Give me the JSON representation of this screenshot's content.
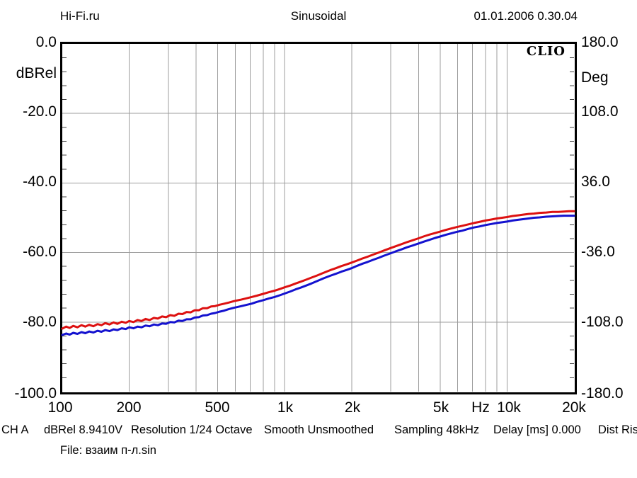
{
  "header": {
    "left": "Hi-Fi.ru",
    "center": "Sinusoidal",
    "right": "01.01.2006 0.30.04"
  },
  "branding": "CLIO",
  "axes": {
    "left": {
      "unit": "dBRel",
      "ticks": [
        "0.0",
        "-20.0",
        "-40.0",
        "-60.0",
        "-80.0",
        "-100.0"
      ]
    },
    "right": {
      "unit": "Deg",
      "ticks": [
        "180.0",
        "108.0",
        "36.0",
        "-36.0",
        "-108.0",
        "-180.0"
      ]
    },
    "bottom": {
      "unit": "Hz",
      "ticks": [
        "100",
        "200",
        "500",
        "1k",
        "2k",
        "5k",
        "10k",
        "20k"
      ]
    }
  },
  "status_bar": {
    "segments": [
      "CH A",
      "dBRel 8.9410V",
      "Resolution 1/24 Octave",
      "Smooth Unsmoothed",
      "Sampling 48kHz",
      "Delay [ms] 0.000",
      "Dist Ris"
    ]
  },
  "file_line": "File: взаим п-л.sin",
  "chart_data": {
    "type": "line",
    "title": "Sinusoidal",
    "x_axis": {
      "scale": "log",
      "label": "Hz",
      "range": [
        100,
        20000
      ],
      "tick_values": [
        100,
        200,
        500,
        1000,
        2000,
        5000,
        10000,
        20000
      ]
    },
    "y_axis_left": {
      "label": "dBRel",
      "range": [
        -100,
        0
      ],
      "major_step": 20,
      "minor_tick_step": 4
    },
    "y_axis_right": {
      "label": "Deg",
      "range": [
        -180,
        180
      ],
      "major_step": 72
    },
    "grid": {
      "freq_lines": [
        200,
        300,
        400,
        500,
        600,
        700,
        800,
        900,
        1000,
        2000,
        3000,
        4000,
        5000,
        6000,
        7000,
        8000,
        9000,
        10000
      ],
      "db_lines": [
        -20,
        -40,
        -60,
        -80
      ],
      "color": "#9c9c9c"
    },
    "legend": "none",
    "series": [
      {
        "name": "blue-curve",
        "color": "#1412cf",
        "points": [
          [
            100,
            -83.7
          ],
          [
            104,
            -83.3
          ],
          [
            108,
            -83.6
          ],
          [
            112,
            -83.1
          ],
          [
            117,
            -83.4
          ],
          [
            122,
            -82.9
          ],
          [
            127,
            -83.2
          ],
          [
            132,
            -82.7
          ],
          [
            138,
            -83.0
          ],
          [
            144,
            -82.5
          ],
          [
            150,
            -82.8
          ],
          [
            156,
            -82.3
          ],
          [
            163,
            -82.6
          ],
          [
            170,
            -82.1
          ],
          [
            177,
            -82.3
          ],
          [
            185,
            -81.8
          ],
          [
            193,
            -82.0
          ],
          [
            200,
            -81.5
          ],
          [
            209,
            -81.8
          ],
          [
            218,
            -81.3
          ],
          [
            227,
            -81.5
          ],
          [
            237,
            -81.0
          ],
          [
            247,
            -81.2
          ],
          [
            258,
            -80.7
          ],
          [
            269,
            -80.9
          ],
          [
            281,
            -80.4
          ],
          [
            293,
            -80.5
          ],
          [
            306,
            -80.0
          ],
          [
            319,
            -80.1
          ],
          [
            333,
            -79.6
          ],
          [
            347,
            -79.7
          ],
          [
            362,
            -79.2
          ],
          [
            378,
            -79.2
          ],
          [
            394,
            -78.7
          ],
          [
            411,
            -78.6
          ],
          [
            429,
            -78.1
          ],
          [
            448,
            -78.0
          ],
          [
            467,
            -77.6
          ],
          [
            487,
            -77.4
          ],
          [
            510,
            -77.0
          ],
          [
            535,
            -76.7
          ],
          [
            560,
            -76.3
          ],
          [
            590,
            -75.9
          ],
          [
            630,
            -75.5
          ],
          [
            670,
            -75.1
          ],
          [
            710,
            -74.7
          ],
          [
            750,
            -74.2
          ],
          [
            800,
            -73.7
          ],
          [
            850,
            -73.2
          ],
          [
            900,
            -72.8
          ],
          [
            950,
            -72.3
          ],
          [
            1000,
            -71.8
          ],
          [
            1060,
            -71.2
          ],
          [
            1120,
            -70.6
          ],
          [
            1180,
            -70.1
          ],
          [
            1250,
            -69.5
          ],
          [
            1320,
            -68.9
          ],
          [
            1400,
            -68.2
          ],
          [
            1500,
            -67.4
          ],
          [
            1600,
            -66.7
          ],
          [
            1700,
            -66.1
          ],
          [
            1800,
            -65.5
          ],
          [
            1900,
            -65.0
          ],
          [
            2000,
            -64.5
          ],
          [
            2120,
            -63.8
          ],
          [
            2240,
            -63.2
          ],
          [
            2360,
            -62.7
          ],
          [
            2500,
            -62.1
          ],
          [
            2650,
            -61.5
          ],
          [
            2800,
            -60.9
          ],
          [
            3000,
            -60.2
          ],
          [
            3150,
            -59.7
          ],
          [
            3350,
            -59.1
          ],
          [
            3550,
            -58.5
          ],
          [
            3750,
            -58.0
          ],
          [
            4000,
            -57.4
          ],
          [
            4250,
            -56.8
          ],
          [
            4500,
            -56.3
          ],
          [
            4750,
            -55.8
          ],
          [
            5000,
            -55.4
          ],
          [
            5300,
            -54.9
          ],
          [
            5600,
            -54.5
          ],
          [
            6000,
            -54.0
          ],
          [
            6300,
            -53.7
          ],
          [
            6700,
            -53.2
          ],
          [
            7100,
            -52.8
          ],
          [
            7500,
            -52.5
          ],
          [
            8000,
            -52.1
          ],
          [
            8500,
            -51.8
          ],
          [
            9000,
            -51.5
          ],
          [
            9500,
            -51.3
          ],
          [
            10000,
            -51.1
          ],
          [
            10600,
            -50.8
          ],
          [
            11200,
            -50.6
          ],
          [
            11800,
            -50.4
          ],
          [
            12500,
            -50.2
          ],
          [
            13200,
            -50.0
          ],
          [
            14000,
            -49.9
          ],
          [
            15000,
            -49.7
          ],
          [
            16000,
            -49.6
          ],
          [
            17000,
            -49.5
          ],
          [
            18000,
            -49.4
          ],
          [
            19000,
            -49.4
          ],
          [
            20000,
            -49.4
          ]
        ]
      },
      {
        "name": "red-curve",
        "color": "#dd1111",
        "points": [
          [
            100,
            -81.9
          ],
          [
            104,
            -81.3
          ],
          [
            108,
            -81.7
          ],
          [
            112,
            -81.1
          ],
          [
            117,
            -81.5
          ],
          [
            122,
            -80.9
          ],
          [
            127,
            -81.3
          ],
          [
            132,
            -80.8
          ],
          [
            138,
            -81.2
          ],
          [
            144,
            -80.6
          ],
          [
            150,
            -80.9
          ],
          [
            156,
            -80.3
          ],
          [
            163,
            -80.7
          ],
          [
            170,
            -80.1
          ],
          [
            177,
            -80.5
          ],
          [
            185,
            -79.9
          ],
          [
            193,
            -80.2
          ],
          [
            200,
            -79.7
          ],
          [
            209,
            -80.0
          ],
          [
            218,
            -79.4
          ],
          [
            227,
            -79.7
          ],
          [
            237,
            -79.1
          ],
          [
            247,
            -79.4
          ],
          [
            258,
            -78.8
          ],
          [
            269,
            -79.0
          ],
          [
            281,
            -78.4
          ],
          [
            293,
            -78.6
          ],
          [
            306,
            -78.0
          ],
          [
            319,
            -78.2
          ],
          [
            333,
            -77.6
          ],
          [
            347,
            -77.7
          ],
          [
            362,
            -77.1
          ],
          [
            378,
            -77.2
          ],
          [
            394,
            -76.6
          ],
          [
            411,
            -76.6
          ],
          [
            429,
            -76.0
          ],
          [
            448,
            -76.0
          ],
          [
            467,
            -75.5
          ],
          [
            487,
            -75.4
          ],
          [
            510,
            -75.0
          ],
          [
            535,
            -74.7
          ],
          [
            560,
            -74.4
          ],
          [
            590,
            -74.0
          ],
          [
            630,
            -73.6
          ],
          [
            670,
            -73.2
          ],
          [
            710,
            -72.8
          ],
          [
            750,
            -72.4
          ],
          [
            800,
            -71.9
          ],
          [
            850,
            -71.4
          ],
          [
            900,
            -71.0
          ],
          [
            950,
            -70.5
          ],
          [
            1000,
            -70.0
          ],
          [
            1060,
            -69.5
          ],
          [
            1120,
            -68.9
          ],
          [
            1180,
            -68.4
          ],
          [
            1250,
            -67.8
          ],
          [
            1320,
            -67.2
          ],
          [
            1400,
            -66.6
          ],
          [
            1500,
            -65.8
          ],
          [
            1600,
            -65.1
          ],
          [
            1700,
            -64.5
          ],
          [
            1800,
            -63.9
          ],
          [
            1900,
            -63.4
          ],
          [
            2000,
            -62.9
          ],
          [
            2120,
            -62.3
          ],
          [
            2240,
            -61.7
          ],
          [
            2360,
            -61.2
          ],
          [
            2500,
            -60.6
          ],
          [
            2650,
            -60.0
          ],
          [
            2800,
            -59.4
          ],
          [
            3000,
            -58.7
          ],
          [
            3150,
            -58.2
          ],
          [
            3350,
            -57.6
          ],
          [
            3550,
            -57.0
          ],
          [
            3750,
            -56.5
          ],
          [
            4000,
            -55.9
          ],
          [
            4250,
            -55.3
          ],
          [
            4500,
            -54.8
          ],
          [
            4750,
            -54.4
          ],
          [
            5000,
            -54.0
          ],
          [
            5300,
            -53.5
          ],
          [
            5600,
            -53.1
          ],
          [
            6000,
            -52.6
          ],
          [
            6300,
            -52.3
          ],
          [
            6700,
            -51.9
          ],
          [
            7100,
            -51.5
          ],
          [
            7500,
            -51.2
          ],
          [
            8000,
            -50.8
          ],
          [
            8500,
            -50.5
          ],
          [
            9000,
            -50.2
          ],
          [
            9500,
            -50.0
          ],
          [
            10000,
            -49.8
          ],
          [
            10600,
            -49.5
          ],
          [
            11200,
            -49.3
          ],
          [
            11800,
            -49.1
          ],
          [
            12500,
            -48.9
          ],
          [
            13200,
            -48.8
          ],
          [
            14000,
            -48.6
          ],
          [
            15000,
            -48.5
          ],
          [
            16000,
            -48.3
          ],
          [
            17000,
            -48.3
          ],
          [
            18000,
            -48.2
          ],
          [
            19000,
            -48.1
          ],
          [
            20000,
            -48.1
          ]
        ]
      }
    ]
  }
}
